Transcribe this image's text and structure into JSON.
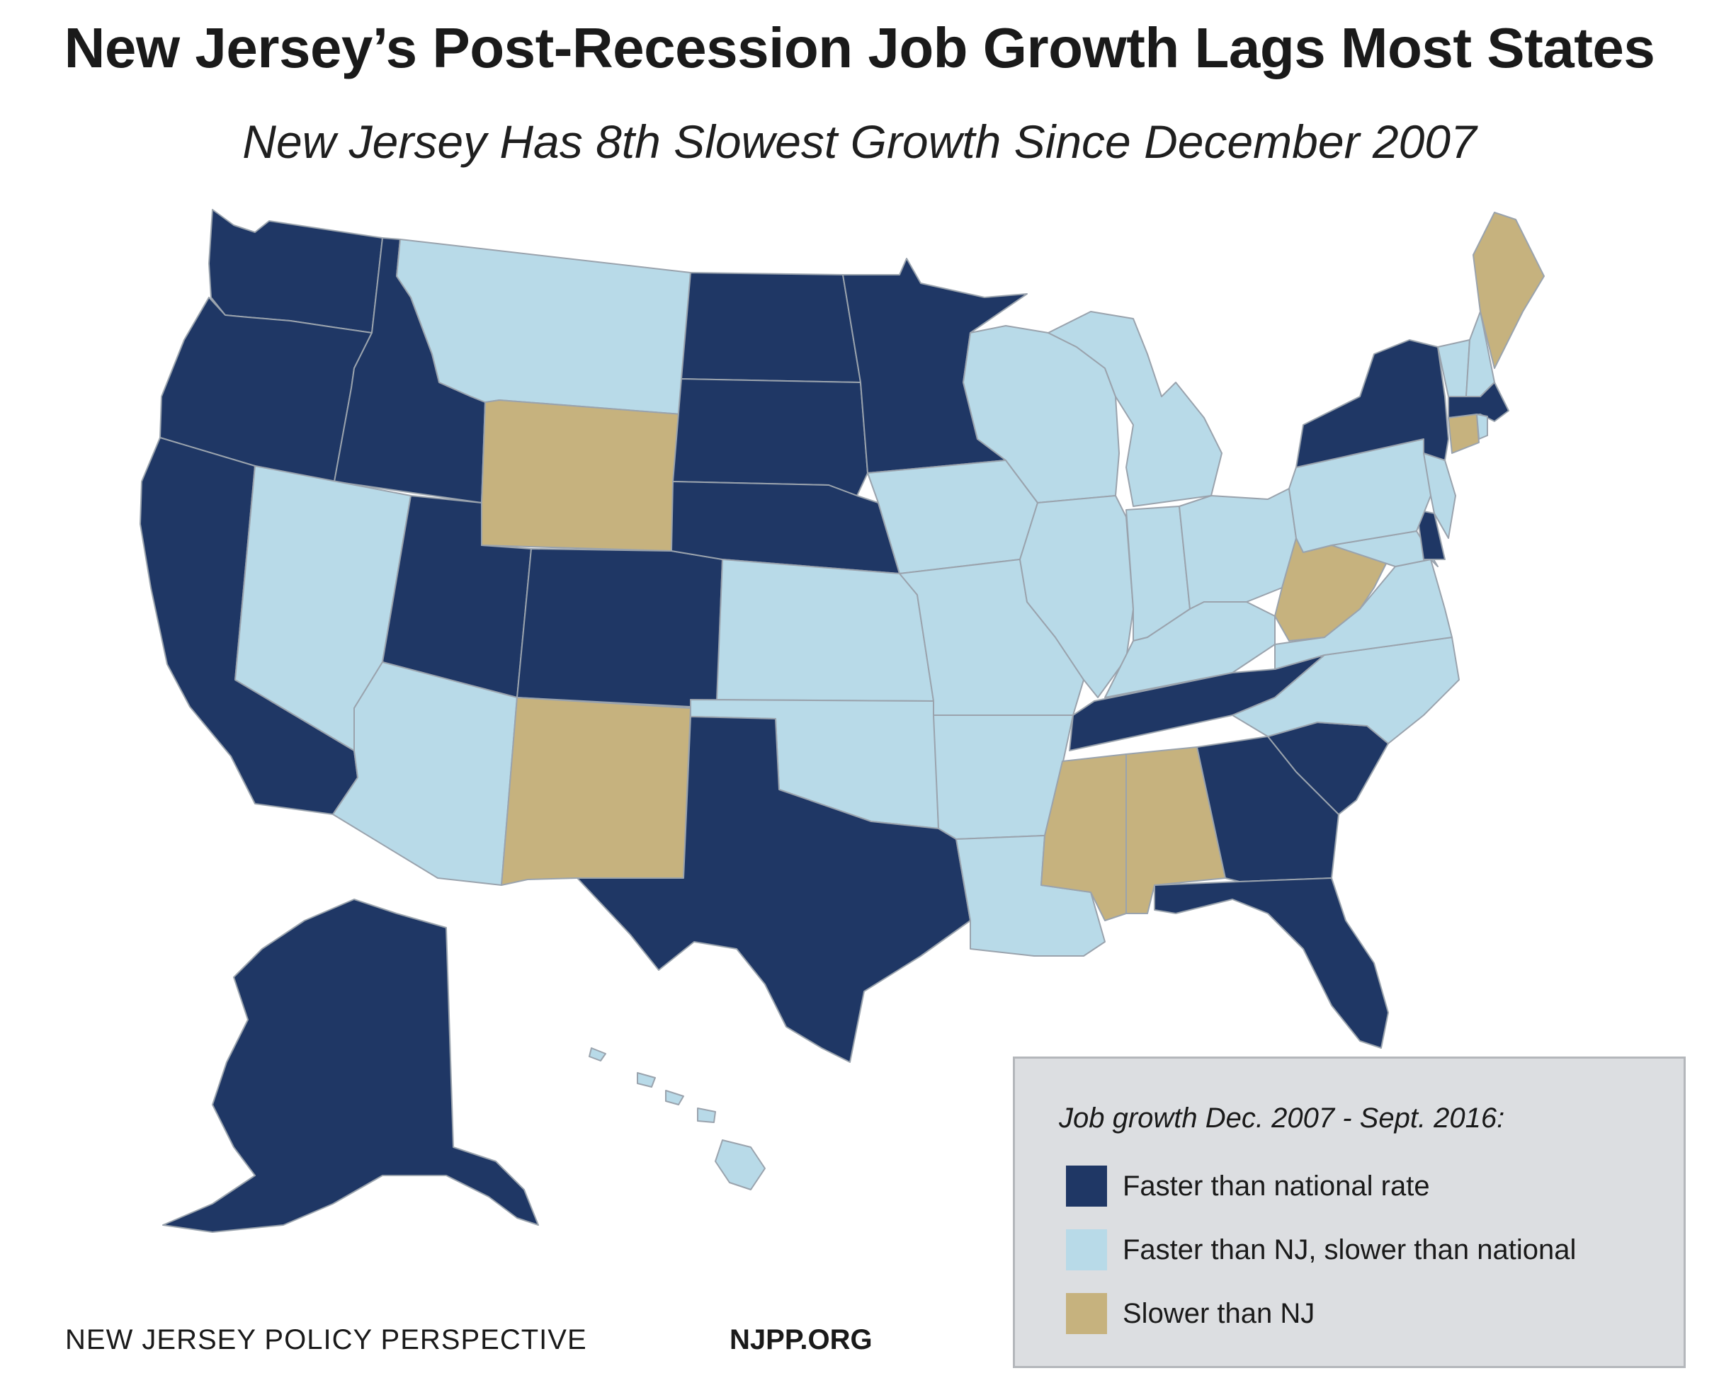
{
  "title": "New Jersey’s Post-Recession Job Growth Lags Most States",
  "subtitle": "New Jersey Has 8th Slowest Growth Since December 2007",
  "colors": {
    "faster_national": "#1f3765",
    "faster_nj": "#b8dae8",
    "slower_nj": "#c6b27e",
    "border": "#9aa3ad"
  },
  "legend": {
    "title": "Job growth Dec. 2007 - Sept. 2016:",
    "items": [
      {
        "category": "faster_national",
        "label": "Faster than national rate"
      },
      {
        "category": "faster_nj",
        "label": "Faster than NJ, slower than national"
      },
      {
        "category": "slower_nj",
        "label": "Slower than NJ"
      }
    ]
  },
  "states": {
    "WA": "faster_national",
    "OR": "faster_national",
    "CA": "faster_national",
    "ID": "faster_national",
    "NV": "faster_nj",
    "UT": "faster_national",
    "AZ": "faster_nj",
    "MT": "faster_nj",
    "WY": "slower_nj",
    "CO": "faster_national",
    "NM": "slower_nj",
    "ND": "faster_national",
    "SD": "faster_national",
    "NE": "faster_national",
    "KS": "faster_nj",
    "OK": "faster_nj",
    "TX": "faster_national",
    "MN": "faster_national",
    "IA": "faster_nj",
    "MO": "faster_nj",
    "AR": "faster_nj",
    "LA": "faster_nj",
    "WI": "faster_nj",
    "IL": "faster_nj",
    "MI": "faster_nj",
    "IN": "faster_nj",
    "OH": "faster_nj",
    "KY": "faster_nj",
    "TN": "faster_national",
    "MS": "slower_nj",
    "AL": "slower_nj",
    "GA": "faster_national",
    "FL": "faster_national",
    "SC": "faster_national",
    "NC": "faster_nj",
    "VA": "faster_nj",
    "WV": "slower_nj",
    "PA": "faster_nj",
    "NY": "faster_national",
    "VT": "faster_nj",
    "NH": "faster_nj",
    "ME": "slower_nj",
    "MA": "faster_national",
    "CT": "slower_nj",
    "RI": "faster_nj",
    "NJ": "faster_nj",
    "DE": "faster_national",
    "MD": "faster_nj",
    "AK": "faster_national",
    "HI": "faster_nj"
  },
  "footer": {
    "org": "NEW JERSEY POLICY PERSPECTIVE",
    "url": "NJPP.ORG"
  }
}
